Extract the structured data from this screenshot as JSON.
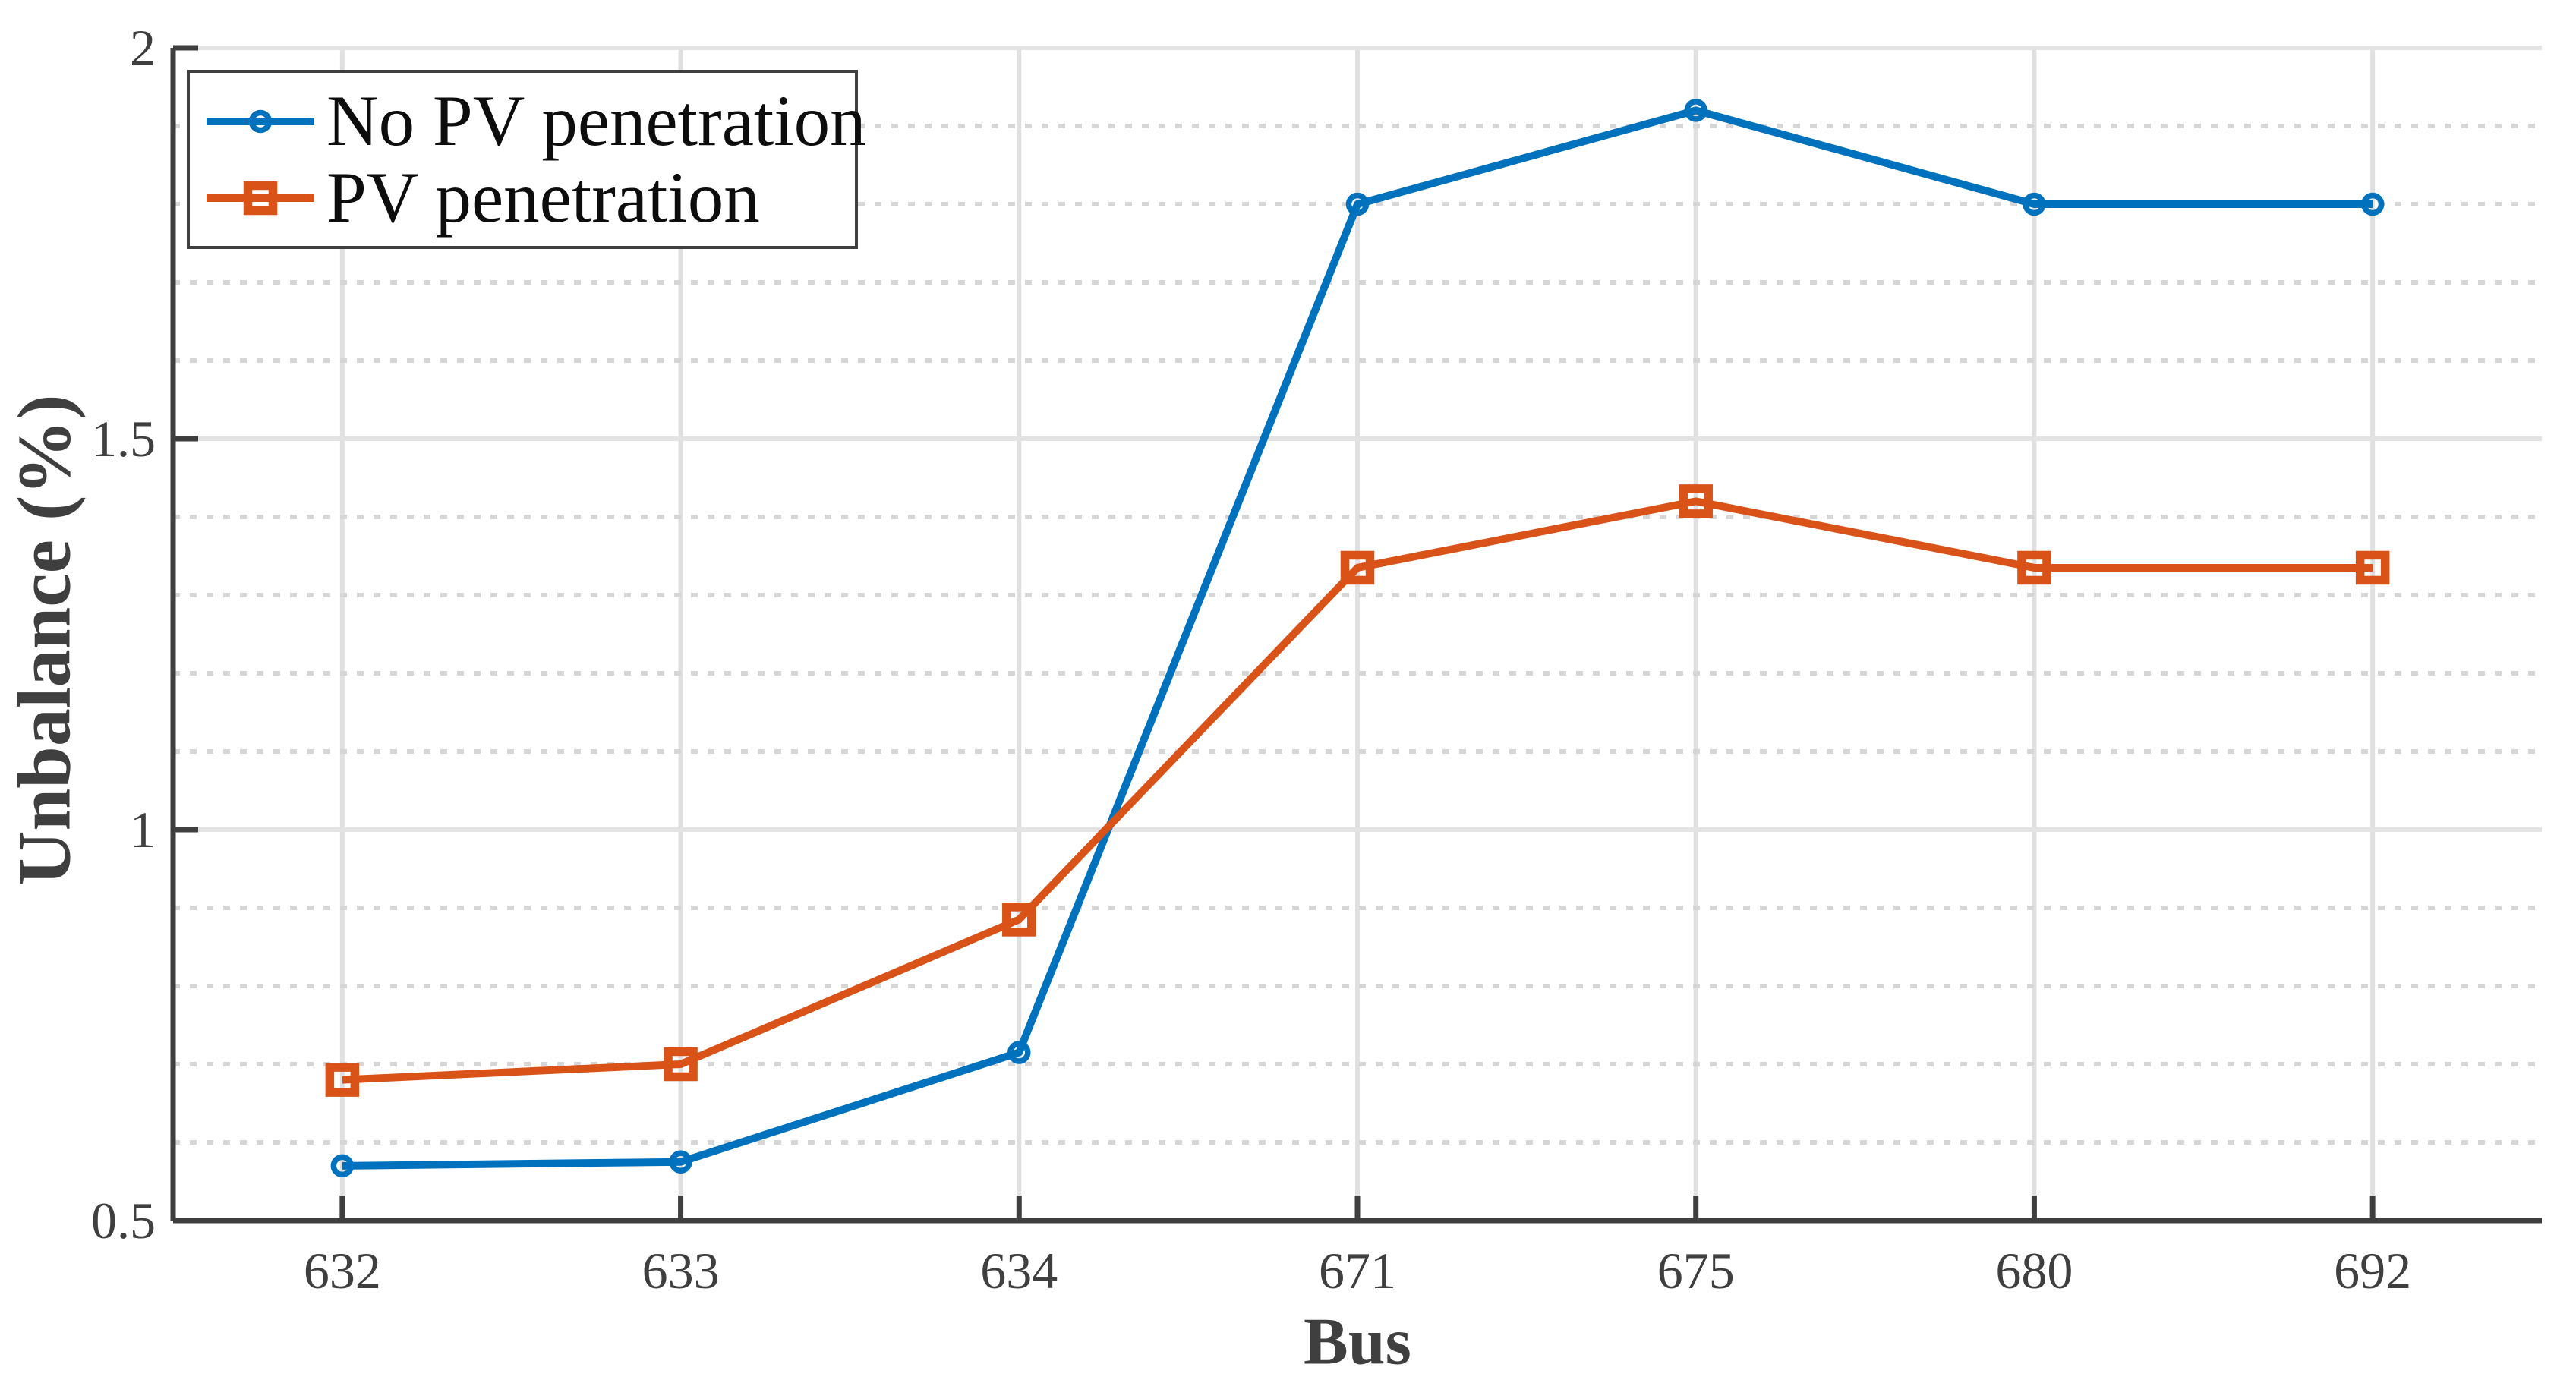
{
  "chart_data": {
    "type": "line",
    "title": "",
    "xlabel": "Bus",
    "ylabel": "Unbalance (%)",
    "categories": [
      "632",
      "633",
      "634",
      "671",
      "675",
      "680",
      "692"
    ],
    "series": [
      {
        "name": "No PV penetration",
        "color": "#0072BD",
        "marker": "circle",
        "values": [
          0.57,
          0.575,
          0.715,
          1.8,
          1.92,
          1.8,
          1.8
        ]
      },
      {
        "name": "PV penetration",
        "color": "#D95319",
        "marker": "square",
        "values": [
          0.68,
          0.7,
          0.885,
          1.335,
          1.42,
          1.335,
          1.335
        ]
      }
    ],
    "ylim": [
      0.5,
      2
    ],
    "yticks": [
      {
        "value": 0.5,
        "label": "0.5"
      },
      {
        "value": 1,
        "label": "1"
      },
      {
        "value": 1.5,
        "label": "1.5"
      },
      {
        "value": 2,
        "label": "2"
      }
    ],
    "minor_gridlines": [
      0.6,
      0.7,
      0.8,
      0.9,
      1.1,
      1.2,
      1.3,
      1.4,
      1.6,
      1.7,
      1.8,
      1.9
    ],
    "grid": {
      "x_major": true,
      "y_major": true,
      "y_minor": true,
      "minor_style": "dashed"
    },
    "legend": {
      "position": "northwest",
      "entries": [
        "No PV penetration",
        "PV penetration"
      ]
    }
  },
  "style": {
    "background": "#FFFFFF",
    "axis_color": "#3F3F3F",
    "major_grid_color": "#E3E3E3",
    "vertical_grid_color": "#E0E0E0",
    "minor_grid_color": "#D6D6D6",
    "legend_text_color": "#0D0D0D",
    "series_blue": "#0072BD",
    "series_orange": "#D95319"
  }
}
